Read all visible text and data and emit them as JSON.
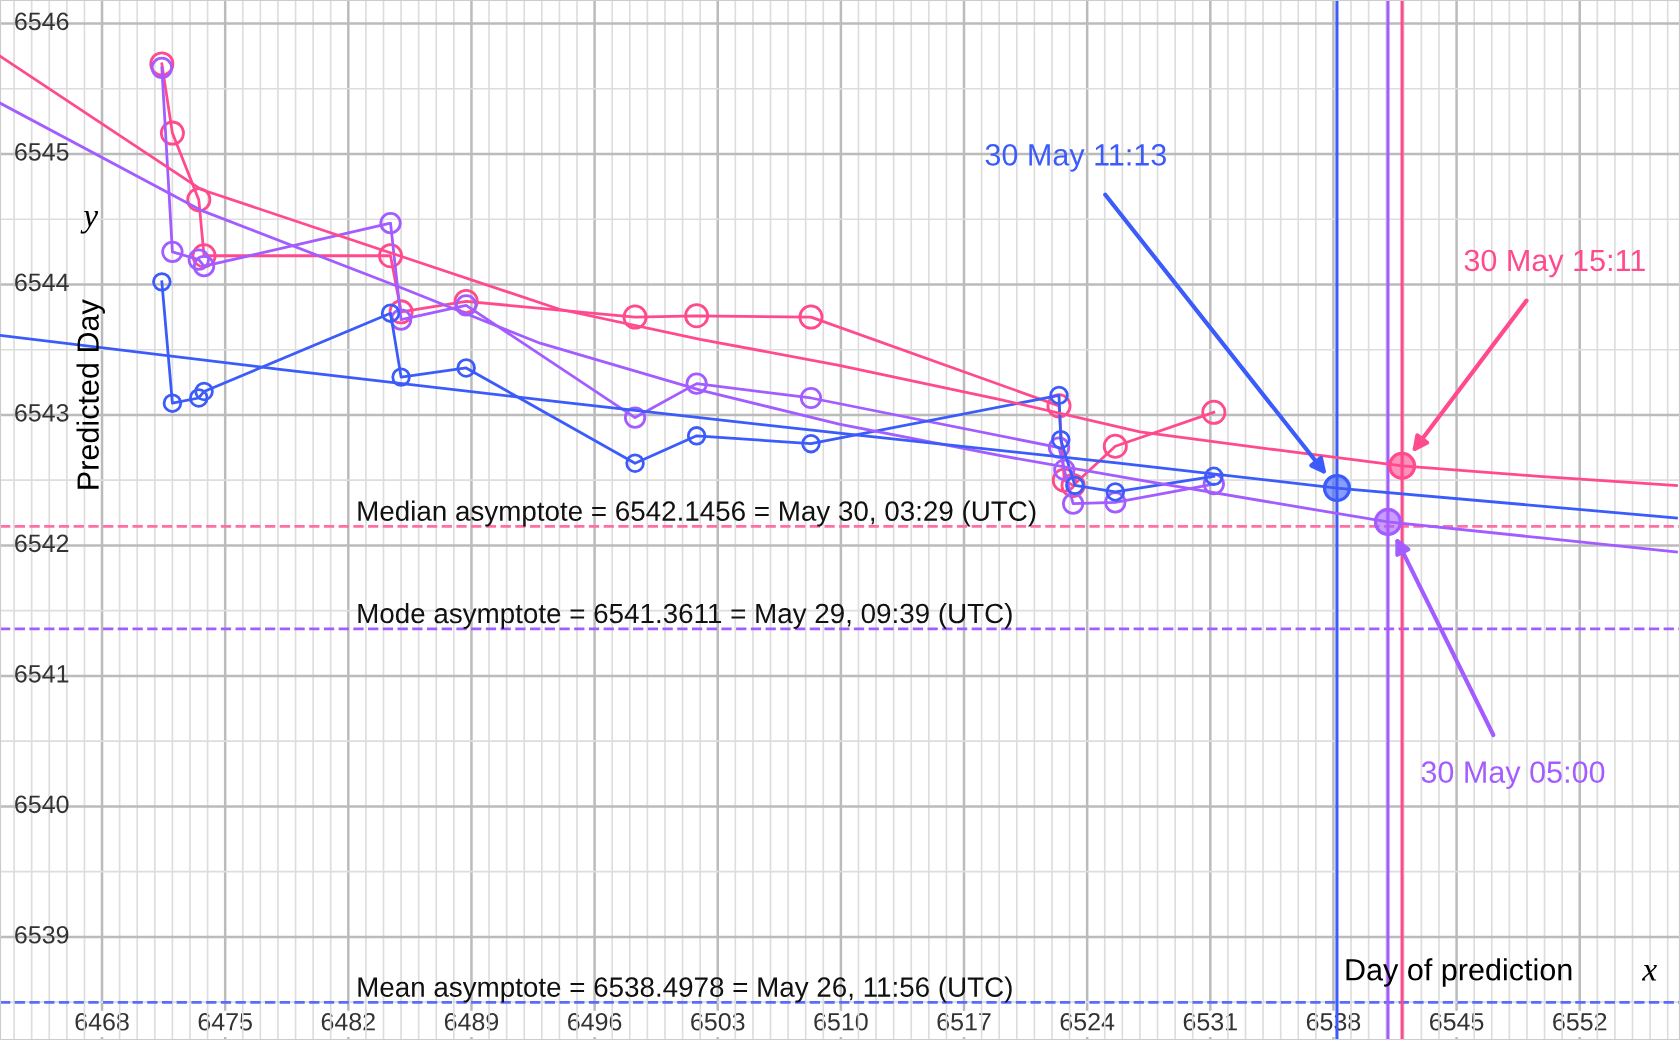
{
  "chart_data": {
    "type": "line",
    "xlabel": "Day of prediction",
    "ylabel": "Predicted Day",
    "annotations": [
      "x",
      "y"
    ],
    "xlim": [
      6462.2,
      6557.7
    ],
    "ylim": [
      6538.21,
      6546.18
    ],
    "xticks": [
      6468,
      6475,
      6482,
      6489,
      6496,
      6503,
      6510,
      6517,
      6524,
      6531,
      6538,
      6545,
      6552
    ],
    "yticks": [
      6539,
      6540,
      6541,
      6542,
      6543,
      6544,
      6545,
      6546
    ],
    "grid": true,
    "legend": false,
    "tick_labels": "xy",
    "series": [
      {
        "marker": "circle",
        "color": "#ff4a8d",
        "x": [
          6471.4,
          6472.0,
          6473.5,
          6473.8,
          6484.4,
          6485.0,
          6488.7,
          6498.3,
          6501.8,
          6508.3,
          6522.4,
          6522.7,
          6523.2,
          6525.6,
          6531.2
        ],
        "values": [
          6545.69,
          6545.16,
          6544.65,
          6544.22,
          6544.22,
          6543.79,
          6543.87,
          6543.75,
          6543.76,
          6543.75,
          6543.07,
          6542.5,
          6542.46,
          6542.76,
          6543.02
        ]
      },
      {
        "marker": "circle",
        "color": "#a35cff",
        "x": [
          6471.4,
          6472.0,
          6473.5,
          6473.8,
          6484.4,
          6485.0,
          6488.7,
          6498.3,
          6501.8,
          6508.3,
          6522.4,
          6522.7,
          6523.2,
          6525.6,
          6531.2
        ],
        "values": [
          6545.66,
          6544.25,
          6544.19,
          6544.14,
          6544.47,
          6543.73,
          6543.84,
          6542.98,
          6543.24,
          6543.13,
          6542.75,
          6542.58,
          6542.32,
          6542.33,
          6542.47
        ]
      },
      {
        "marker": "circle",
        "color": "#3b5bfa",
        "x": [
          6471.4,
          6472.0,
          6473.5,
          6473.8,
          6484.4,
          6485.0,
          6488.7,
          6498.3,
          6501.8,
          6508.3,
          6522.4,
          6522.5,
          6523.3,
          6525.6,
          6531.2
        ],
        "values": [
          6544.02,
          6543.09,
          6543.13,
          6543.18,
          6543.78,
          6543.29,
          6543.36,
          6542.63,
          6542.84,
          6542.78,
          6543.15,
          6542.81,
          6542.46,
          6542.41,
          6542.53
        ]
      },
      {
        "marker": "none",
        "color": "#ff4a8d",
        "x": [
          6462.2,
          6473.6,
          6484.9,
          6494.0,
          6502.0,
          6509.9,
          6519.0,
          6527.0,
          6534.9,
          6541.9,
          6549.7,
          6557.5
        ],
        "values": [
          6545.75,
          6544.73,
          6544.22,
          6543.81,
          6543.58,
          6543.38,
          6543.12,
          6542.87,
          6542.73,
          6542.61,
          6542.53,
          6542.46
        ]
      },
      {
        "marker": "none",
        "color": "#a35cff",
        "x": [
          6462.2,
          6473.6,
          6484.9,
          6492.9,
          6502.0,
          6509.9,
          6519.0,
          6527.0,
          6534.9,
          6541.1,
          6549.7,
          6557.5
        ],
        "values": [
          6545.39,
          6544.57,
          6543.98,
          6543.55,
          6543.19,
          6542.93,
          6542.69,
          6542.5,
          6542.32,
          6542.18,
          6542.06,
          6541.95
        ]
      },
      {
        "marker": "none",
        "color": "#3b5bfa",
        "x": [
          6462.2,
          6478.1,
          6494.0,
          6509.9,
          6525.8,
          6538.2,
          6557.5
        ],
        "values": [
          6543.61,
          6543.35,
          6543.1,
          6542.86,
          6542.63,
          6542.44,
          6542.21
        ]
      },
      {
        "type": "scatter",
        "marker": "circle",
        "name": "30 May 11:13",
        "color": "#3b5bfa",
        "x": [
          6538.2
        ],
        "values": [
          6542.44
        ]
      },
      {
        "type": "scatter",
        "marker": "circle",
        "name": "30 May 15:11",
        "color": "#ff4a8d",
        "x": [
          6541.9
        ],
        "values": [
          6542.61
        ]
      },
      {
        "type": "scatter",
        "marker": "circle",
        "name": "30 May 05:00",
        "color": "#a35cff",
        "x": [
          6541.1
        ],
        "values": [
          6542.18
        ]
      }
    ],
    "ref_lines": [
      {
        "axis": "y",
        "value": 6542.1456,
        "label": "Median asymptote = 6542.1456 = May 30, 03:29 (UTC)",
        "color": "#ff6fa6",
        "line_style": "dashed"
      },
      {
        "axis": "y",
        "value": 6541.3611,
        "label": "Mode asymptote = 6541.3611 = May 29, 09:39 (UTC)",
        "color": "#a35cff",
        "line_style": "dashed"
      },
      {
        "axis": "y",
        "value": 6538.4978,
        "label": "Mean asymptote = 6538.4978 = May 26, 11:56 (UTC)",
        "color": "#5a6cff",
        "line_style": "dashed"
      },
      {
        "axis": "x",
        "value": 6538.2,
        "color": "#3b5bfa",
        "line_style": "solid"
      },
      {
        "axis": "x",
        "value": 6541.1,
        "color": "#a35cff",
        "line_style": "solid"
      },
      {
        "axis": "x",
        "value": 6541.9,
        "color": "#ff4a8d",
        "line_style": "solid"
      }
    ]
  }
}
